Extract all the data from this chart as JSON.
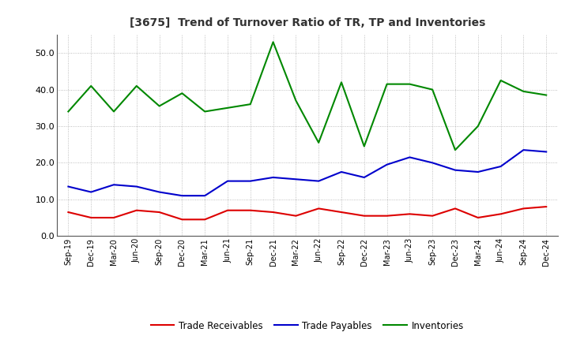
{
  "title": "[3675]  Trend of Turnover Ratio of TR, TP and Inventories",
  "x_labels": [
    "Sep-19",
    "Dec-19",
    "Mar-20",
    "Jun-20",
    "Sep-20",
    "Dec-20",
    "Mar-21",
    "Jun-21",
    "Sep-21",
    "Dec-21",
    "Mar-22",
    "Jun-22",
    "Sep-22",
    "Dec-22",
    "Mar-23",
    "Jun-23",
    "Sep-23",
    "Dec-23",
    "Mar-24",
    "Jun-24",
    "Sep-24",
    "Dec-24"
  ],
  "trade_receivables": [
    6.5,
    5.0,
    5.0,
    7.0,
    6.5,
    4.5,
    4.5,
    7.0,
    7.0,
    6.5,
    5.5,
    7.5,
    6.5,
    5.5,
    5.5,
    6.0,
    5.5,
    7.5,
    5.0,
    6.0,
    7.5,
    8.0
  ],
  "trade_payables": [
    13.5,
    12.0,
    14.0,
    13.5,
    12.0,
    11.0,
    11.0,
    15.0,
    15.0,
    16.0,
    15.5,
    15.0,
    17.5,
    16.0,
    19.5,
    21.5,
    20.0,
    18.0,
    17.5,
    19.0,
    23.5,
    23.0
  ],
  "inventories": [
    34.0,
    41.0,
    34.0,
    41.0,
    35.5,
    39.0,
    34.0,
    35.0,
    36.0,
    53.0,
    37.0,
    25.5,
    42.0,
    24.5,
    41.5,
    41.5,
    40.0,
    23.5,
    30.0,
    42.5,
    39.5,
    38.5
  ],
  "ylim": [
    0,
    55
  ],
  "yticks": [
    0.0,
    10.0,
    20.0,
    30.0,
    40.0,
    50.0
  ],
  "tr_color": "#dd0000",
  "tp_color": "#0000cc",
  "inv_color": "#008800",
  "legend_labels": [
    "Trade Receivables",
    "Trade Payables",
    "Inventories"
  ],
  "background_color": "#ffffff",
  "grid_color": "#999999",
  "title_color": "#333333"
}
